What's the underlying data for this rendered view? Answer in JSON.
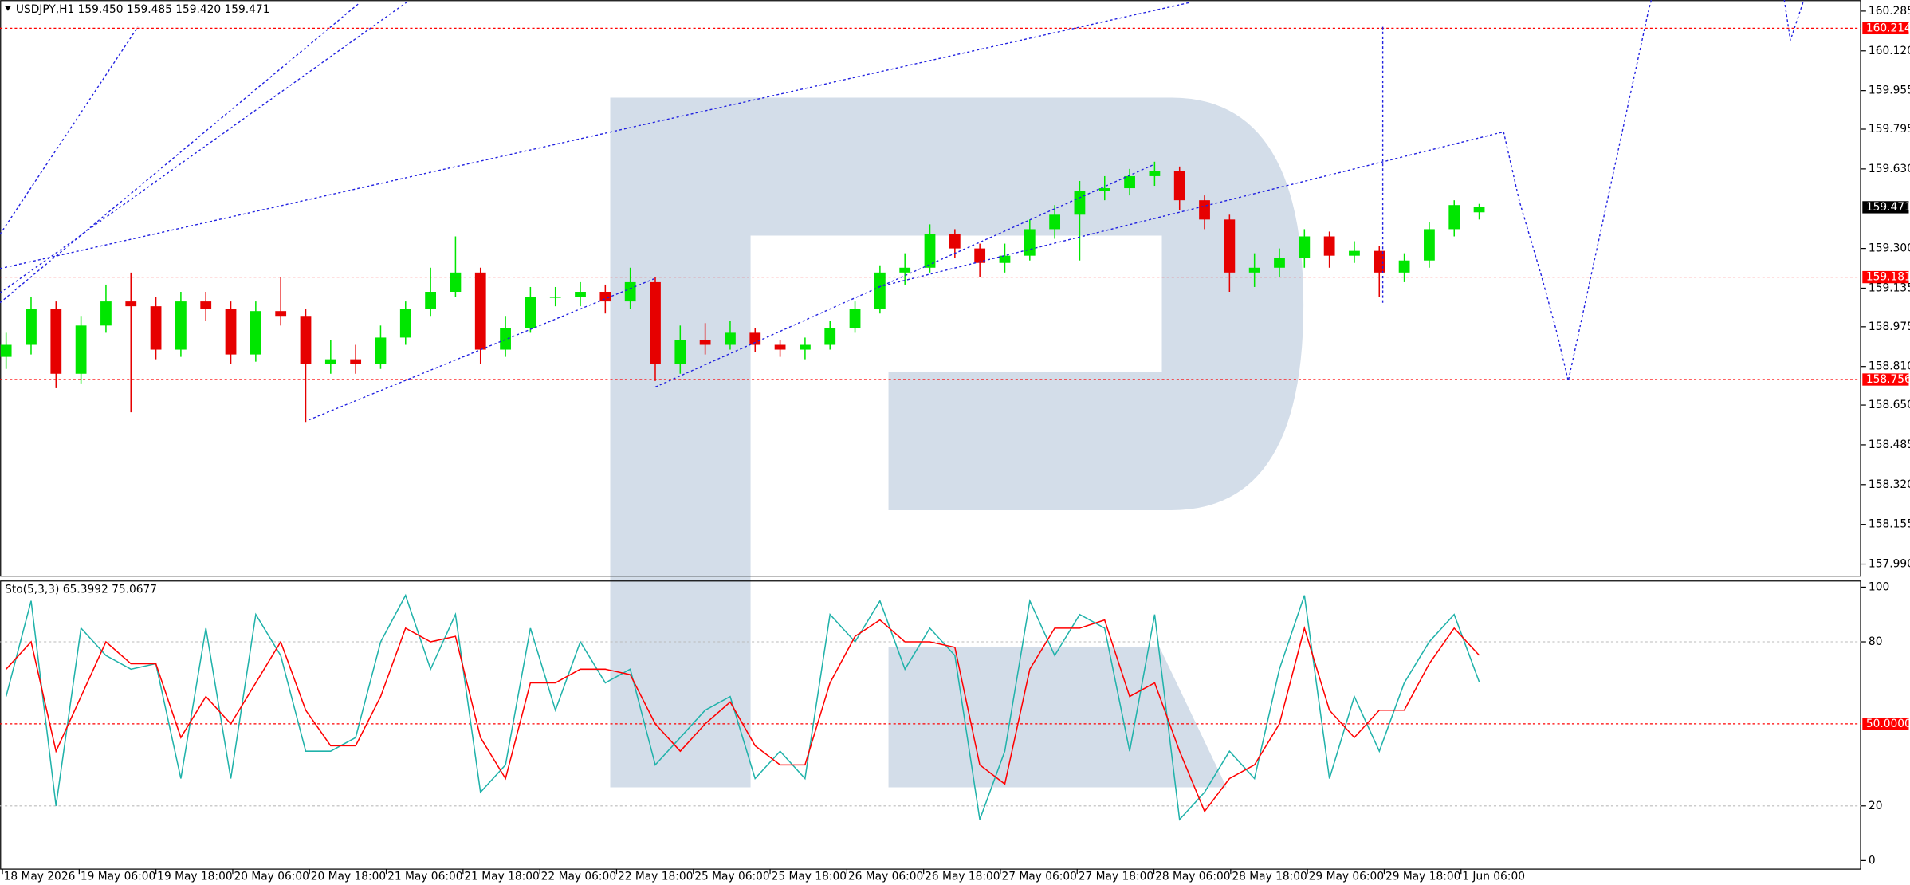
{
  "chart_data": [
    {
      "type": "candlestick",
      "title": "USDJPY,H1  159.450 159.485 159.420 159.471",
      "up_color": "#00e600",
      "down_color": "#e60000",
      "ylim": [
        157.94,
        160.331
      ],
      "yticks": [
        160.285,
        {
          "value": 160.12,
          "label": "160.120"
        },
        159.955,
        159.795,
        {
          "value": 159.63,
          "label": "159.630"
        },
        {
          "value": 159.3,
          "label": "159.300"
        },
        159.135,
        158.975,
        {
          "value": 158.81,
          "label": "158.810"
        },
        {
          "value": 158.65,
          "label": "158.650"
        },
        158.485,
        {
          "value": 158.32,
          "label": "158.320"
        },
        158.155,
        {
          "value": 157.99,
          "label": "157.990"
        }
      ],
      "levels": [
        160.214,
        159.181,
        158.756
      ],
      "level_color": "#ff0000",
      "last_price": 159.471,
      "candles": {
        "open": [
          158.85,
          158.9,
          159.05,
          158.78,
          158.98,
          159.08,
          159.06,
          158.88,
          159.08,
          159.05,
          158.86,
          159.04,
          159.02,
          158.82,
          158.84,
          158.82,
          158.93,
          159.05,
          159.12,
          159.2,
          158.88,
          158.97,
          159.1,
          159.1,
          159.12,
          159.08,
          159.16,
          158.82,
          158.92,
          158.9,
          158.95,
          158.9,
          158.88,
          158.9,
          158.97,
          159.05,
          159.2,
          159.22,
          159.36,
          159.3,
          159.24,
          159.27,
          159.38,
          159.44,
          159.54,
          159.55,
          159.6,
          159.62,
          159.5,
          159.42,
          159.2,
          159.22,
          159.26,
          159.35,
          159.27,
          159.29,
          159.2,
          159.25,
          159.38,
          159.45
        ],
        "high": [
          158.95,
          159.1,
          159.08,
          159.02,
          159.15,
          159.2,
          159.1,
          159.12,
          159.12,
          159.08,
          159.08,
          159.18,
          159.05,
          158.92,
          158.9,
          158.98,
          159.08,
          159.22,
          159.35,
          159.22,
          159.02,
          159.14,
          159.14,
          159.16,
          159.15,
          159.22,
          159.18,
          158.98,
          158.99,
          159.0,
          158.97,
          158.92,
          158.93,
          159.0,
          159.08,
          159.23,
          159.28,
          159.4,
          159.38,
          159.32,
          159.32,
          159.42,
          159.48,
          159.58,
          159.6,
          159.63,
          159.66,
          159.64,
          159.52,
          159.44,
          159.28,
          159.3,
          159.38,
          159.37,
          159.33,
          159.31,
          159.28,
          159.41,
          159.5,
          159.485
        ],
        "low": [
          158.8,
          158.86,
          158.72,
          158.74,
          158.95,
          158.62,
          158.84,
          158.85,
          159.0,
          158.82,
          158.83,
          158.98,
          158.58,
          158.78,
          158.78,
          158.8,
          158.9,
          159.02,
          159.1,
          158.82,
          158.85,
          158.95,
          159.06,
          159.06,
          159.03,
          159.05,
          158.75,
          158.78,
          158.86,
          158.88,
          158.87,
          158.85,
          158.84,
          158.88,
          158.95,
          159.03,
          159.15,
          159.2,
          159.26,
          159.18,
          159.2,
          159.25,
          159.34,
          159.25,
          159.5,
          159.52,
          159.56,
          159.46,
          159.38,
          159.12,
          159.14,
          159.18,
          159.22,
          159.22,
          159.24,
          159.1,
          159.16,
          159.22,
          159.35,
          159.42
        ],
        "close": [
          158.9,
          159.05,
          158.78,
          158.98,
          159.08,
          159.06,
          158.88,
          159.08,
          159.05,
          158.86,
          159.04,
          159.02,
          158.82,
          158.84,
          158.82,
          158.93,
          159.05,
          159.12,
          159.2,
          158.88,
          158.97,
          159.1,
          159.1,
          159.12,
          159.08,
          159.16,
          158.82,
          158.92,
          158.9,
          158.95,
          158.9,
          158.88,
          158.9,
          158.97,
          159.05,
          159.2,
          159.22,
          159.36,
          159.3,
          159.24,
          159.27,
          159.38,
          159.44,
          159.54,
          159.55,
          159.6,
          159.62,
          159.5,
          159.42,
          159.2,
          159.22,
          159.26,
          159.35,
          159.27,
          159.29,
          159.2,
          159.25,
          159.38,
          159.48,
          159.471
        ]
      }
    },
    {
      "type": "line",
      "title": "Sto(5,3,3) 65.3992 75.0677",
      "ylim": [
        0,
        100
      ],
      "yticks": [
        0,
        20,
        80,
        100
      ],
      "levels": [
        {
          "value": 50,
          "label": "50.0000"
        }
      ],
      "level_color": "#ff0000",
      "series": [
        {
          "color": "#20b2aa",
          "values": [
            60,
            95,
            20,
            85,
            75,
            70,
            72,
            30,
            85,
            30,
            90,
            75,
            40,
            40,
            45,
            80,
            97,
            70,
            90,
            25,
            35,
            85,
            55,
            80,
            65,
            70,
            35,
            45,
            55,
            60,
            30,
            40,
            30,
            90,
            80,
            95,
            70,
            85,
            75,
            15,
            40,
            95,
            75,
            90,
            85,
            40,
            90,
            15,
            25,
            40,
            30,
            70,
            97,
            30,
            60,
            40,
            65,
            80,
            90,
            65.3992
          ]
        },
        {
          "color": "#ff0000",
          "values": [
            70,
            80,
            40,
            60,
            80,
            72,
            72,
            45,
            60,
            50,
            65,
            80,
            55,
            42,
            42,
            60,
            85,
            80,
            82,
            45,
            30,
            65,
            65,
            70,
            70,
            68,
            50,
            40,
            50,
            58,
            42,
            35,
            35,
            65,
            82,
            88,
            80,
            80,
            78,
            35,
            28,
            70,
            85,
            85,
            88,
            60,
            65,
            40,
            18,
            30,
            35,
            50,
            85,
            55,
            45,
            55,
            55,
            72,
            85,
            75.0677
          ]
        }
      ],
      "x_labels": [
        "18 May 2026",
        "19 May 06:00",
        "19 May 18:00",
        "20 May 06:00",
        "20 May 18:00",
        "21 May 06:00",
        "21 May 18:00",
        "22 May 06:00",
        "22 May 18:00",
        "25 May 06:00",
        "25 May 18:00",
        "26 May 06:00",
        "26 May 18:00",
        "27 May 06:00",
        "27 May 18:00",
        "28 May 06:00",
        "28 May 18:00",
        "29 May 06:00",
        "29 May 18:00",
        "1 Jun 06:00"
      ]
    }
  ]
}
